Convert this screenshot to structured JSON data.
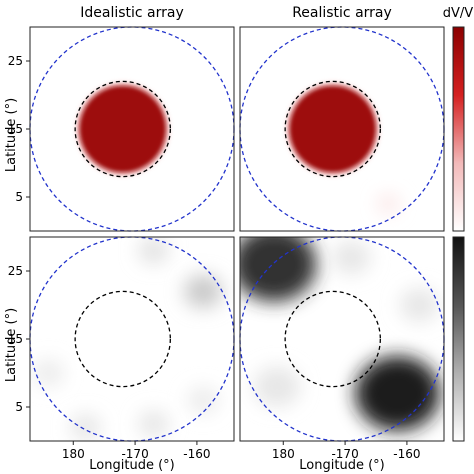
{
  "figure": {
    "col_titles": [
      "Idealistic array",
      "Realistic array"
    ],
    "colorbar_label": "dV/V",
    "xlabel": "Longitude (°)",
    "ylabel": "Latitude (°)"
  },
  "chart_data": {
    "type": "heatmap",
    "xlabel": "Longitude (°)",
    "ylabel": "Latitude (°)",
    "xlim": [
      -187,
      -154
    ],
    "ylim": [
      0,
      30
    ],
    "xticks": [
      {
        "value": -180,
        "label": "180"
      },
      {
        "value": -170,
        "label": "-170"
      },
      {
        "value": -160,
        "label": "-160"
      }
    ],
    "yticks": [
      {
        "value": 5,
        "label": "5"
      },
      {
        "value": 15,
        "label": "15"
      },
      {
        "value": 25,
        "label": "25"
      }
    ],
    "outer_circle": {
      "center": [
        -170.5,
        15
      ],
      "radius": 15,
      "color": "#2233cc",
      "style": "dashed"
    },
    "inner_circle": {
      "center": [
        -172,
        15
      ],
      "radius": 7,
      "color": "#000000",
      "style": "dashed"
    },
    "colormaps": {
      "top": [
        "#ffffff",
        "#f2b9b9",
        "#d42020",
        "#8b0000"
      ],
      "bottom": [
        "#ffffff",
        "#b0b0b0",
        "#555555",
        "#111111"
      ]
    },
    "panels": [
      {
        "row": "top",
        "column": "Idealistic array",
        "features": [
          {
            "shape": "disk",
            "center": [
              -172,
              15
            ],
            "radius": 7,
            "intensity": 0.92
          }
        ]
      },
      {
        "row": "top",
        "column": "Realistic array",
        "features": [
          {
            "shape": "disk",
            "center": [
              -172,
              15
            ],
            "radius": 7,
            "intensity": 0.92
          },
          {
            "shape": "blob",
            "center": [
              -163,
              4
            ],
            "radius": 1.4,
            "intensity": 0.12
          }
        ]
      },
      {
        "row": "bottom",
        "column": "Idealistic array",
        "features": [
          {
            "shape": "blob",
            "center": [
              -167,
              28
            ],
            "radius": 2,
            "intensity": 0.12
          },
          {
            "shape": "blob",
            "center": [
              -159,
              22
            ],
            "radius": 2.5,
            "intensity": 0.22
          },
          {
            "shape": "blob",
            "center": [
              -184,
              10
            ],
            "radius": 2,
            "intensity": 0.08
          },
          {
            "shape": "blob",
            "center": [
              -178,
              2
            ],
            "radius": 2,
            "intensity": 0.1
          },
          {
            "shape": "blob",
            "center": [
              -167,
              2.5
            ],
            "radius": 2,
            "intensity": 0.1
          },
          {
            "shape": "blob",
            "center": [
              -159,
              6
            ],
            "radius": 2,
            "intensity": 0.08
          }
        ]
      },
      {
        "row": "bottom",
        "column": "Realistic array",
        "features": [
          {
            "shape": "blob",
            "center": [
              -181.5,
              26
            ],
            "radius": 5.5,
            "intensity": 0.85
          },
          {
            "shape": "blob",
            "center": [
              -161.5,
              7
            ],
            "radius": 5.5,
            "intensity": 0.95
          },
          {
            "shape": "blob",
            "center": [
              -169,
              27
            ],
            "radius": 2.5,
            "intensity": 0.1
          },
          {
            "shape": "blob",
            "center": [
              -158,
              20
            ],
            "radius": 2.5,
            "intensity": 0.1
          },
          {
            "shape": "blob",
            "center": [
              -181,
              8
            ],
            "radius": 3,
            "intensity": 0.1
          }
        ]
      }
    ]
  }
}
